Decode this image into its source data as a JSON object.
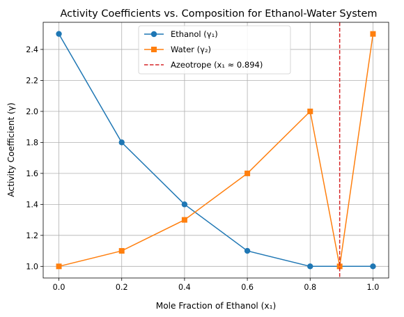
{
  "chart_data": {
    "type": "line",
    "title": "Activity Coefficients vs. Composition for Ethanol-Water System",
    "xlabel": "Mole Fraction of Ethanol (x₁)",
    "ylabel": "Activity Coefficient (γ)",
    "xlim": [
      -0.05,
      1.05
    ],
    "ylim": [
      0.925,
      2.575
    ],
    "x_ticks": [
      0.0,
      0.2,
      0.4,
      0.6,
      0.8,
      1.0
    ],
    "y_ticks": [
      1.0,
      1.2,
      1.4,
      1.6,
      1.8,
      2.0,
      2.2,
      2.4
    ],
    "x_tick_labels": [
      "0.0",
      "0.2",
      "0.4",
      "0.6",
      "0.8",
      "1.0"
    ],
    "y_tick_labels": [
      "1.0",
      "1.2",
      "1.4",
      "1.6",
      "1.8",
      "2.0",
      "2.2",
      "2.4"
    ],
    "grid": true,
    "legend_position": "top-center",
    "series": [
      {
        "name": "Ethanol (γ₁)",
        "color": "#1f77b4",
        "marker": "circle",
        "x": [
          0.0,
          0.2,
          0.4,
          0.6,
          0.8,
          1.0
        ],
        "y": [
          2.5,
          1.8,
          1.4,
          1.1,
          1.0,
          1.0
        ]
      },
      {
        "name": "Water (γ₂)",
        "color": "#ff7f0e",
        "marker": "square",
        "x": [
          0.0,
          0.2,
          0.4,
          0.6,
          0.8,
          0.894,
          1.0
        ],
        "y": [
          1.0,
          1.1,
          1.3,
          1.6,
          2.0,
          1.0,
          2.5
        ]
      }
    ],
    "vline": {
      "name": "Azeotrope (x₁ ≈ 0.894)",
      "x": 0.894,
      "color": "#d62728",
      "style": "dashed"
    }
  }
}
